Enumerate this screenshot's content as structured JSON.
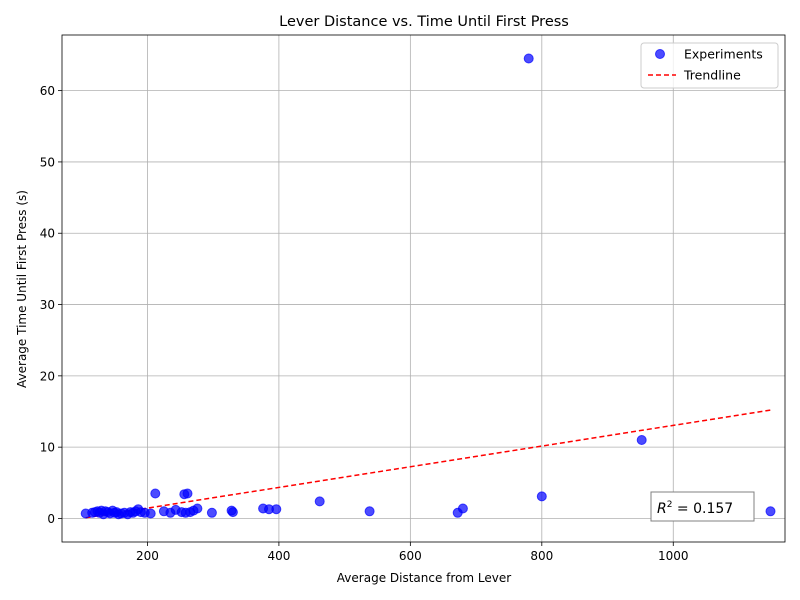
{
  "chart_data": {
    "type": "scatter",
    "title": "Lever Distance vs. Time Until First Press",
    "xlabel": "Average Distance from Lever",
    "ylabel": "Average Time Until First Press (s)",
    "xlim": [
      70,
      1170
    ],
    "ylim": [
      -3.3,
      67.8
    ],
    "xticks": [
      200,
      400,
      600,
      800,
      1000
    ],
    "yticks": [
      0,
      10,
      20,
      30,
      40,
      50,
      60
    ],
    "grid": true,
    "legend_position": "top-right",
    "series": [
      {
        "name": "Experiments",
        "kind": "scatter",
        "color": "#0000ff",
        "points": [
          [
            106,
            0.7
          ],
          [
            116,
            0.8
          ],
          [
            120,
            0.9
          ],
          [
            124,
            1.0
          ],
          [
            127,
            0.8
          ],
          [
            130,
            1.1
          ],
          [
            133,
            0.6
          ],
          [
            136,
            1.0
          ],
          [
            140,
            0.9
          ],
          [
            143,
            0.7
          ],
          [
            147,
            1.1
          ],
          [
            150,
            0.8
          ],
          [
            153,
            0.9
          ],
          [
            156,
            0.6
          ],
          [
            160,
            0.7
          ],
          [
            165,
            0.8
          ],
          [
            170,
            0.6
          ],
          [
            174,
            0.9
          ],
          [
            178,
            0.8
          ],
          [
            182,
            1.0
          ],
          [
            186,
            1.3
          ],
          [
            190,
            0.9
          ],
          [
            196,
            0.8
          ],
          [
            205,
            0.7
          ],
          [
            212,
            3.5
          ],
          [
            225,
            1.0
          ],
          [
            235,
            0.8
          ],
          [
            243,
            1.2
          ],
          [
            252,
            0.9
          ],
          [
            256,
            3.4
          ],
          [
            258,
            0.8
          ],
          [
            261,
            3.5
          ],
          [
            265,
            0.9
          ],
          [
            270,
            1.1
          ],
          [
            276,
            1.4
          ],
          [
            298,
            0.8
          ],
          [
            328,
            1.1
          ],
          [
            330,
            0.9
          ],
          [
            376,
            1.4
          ],
          [
            385,
            1.3
          ],
          [
            396,
            1.3
          ],
          [
            462,
            2.4
          ],
          [
            538,
            1.0
          ],
          [
            672,
            0.8
          ],
          [
            680,
            1.4
          ],
          [
            780,
            64.5
          ],
          [
            800,
            3.1
          ],
          [
            952,
            11.0
          ],
          [
            1148,
            1.0
          ]
        ]
      },
      {
        "name": "Trendline",
        "kind": "line",
        "style": "dashed",
        "color": "#ff0000",
        "points": [
          [
            106,
            0.1
          ],
          [
            1148,
            15.2
          ]
        ]
      }
    ],
    "annotation": {
      "prefix": "R",
      "superscript": "2",
      "suffix": " = 0.157",
      "position": "bottom-right"
    }
  }
}
